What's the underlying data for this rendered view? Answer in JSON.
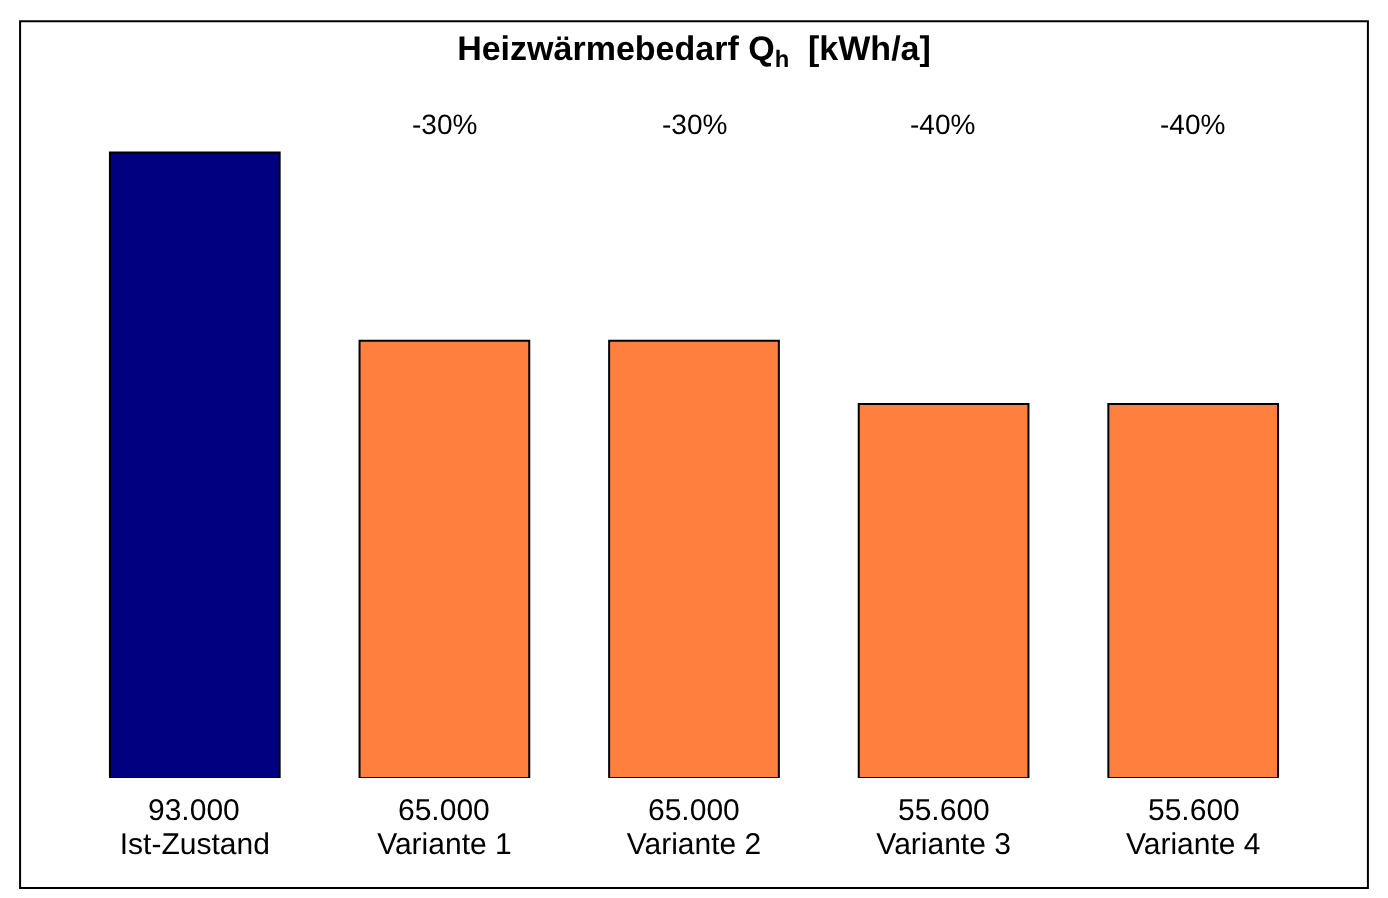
{
  "chart_data": {
    "type": "bar",
    "title": "Heizwärmebedarf Q$_{h}$  [kWh/a]",
    "categories": [
      "Ist-Zustand",
      "Variante 1",
      "Variante 2",
      "Variante 3",
      "Variante 4"
    ],
    "values": [
      93000,
      65000,
      65000,
      55600,
      55600
    ],
    "colors": [
      "#000080",
      "#ff7f3f",
      "#ff7f3f",
      "#ff7f3f",
      "#ff7f3f"
    ],
    "value_labels": [
      "93.000",
      "65.000",
      "65.000",
      "55.600",
      "55.600"
    ],
    "annotations": [
      "-30%",
      "-30%",
      "-40%",
      "-40%"
    ],
    "legend": false
  }
}
